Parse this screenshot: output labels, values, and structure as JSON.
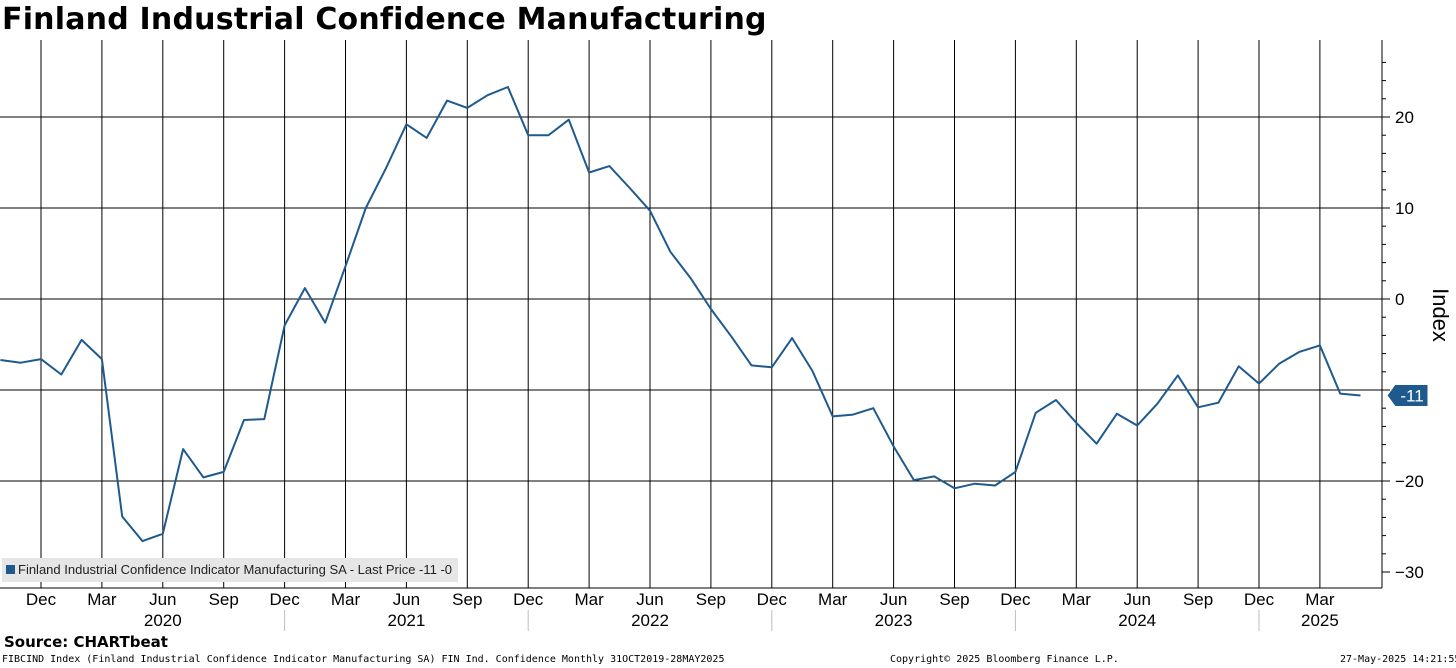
{
  "title": "Finland Industrial Confidence Manufacturing",
  "source": "Source: CHARTbeat",
  "footer": {
    "left": "FIBCIND Index (Finland Industrial Confidence Indicator Manufacturing SA) FIN Ind. Confidence  Monthly 31OCT2019-28MAY2025",
    "center": "Copyright© 2025 Bloomberg Finance L.P.",
    "right": "27-May-2025 14:21:55"
  },
  "legend": {
    "label": "Finland Industrial Confidence Indicator Manufacturing SA - Last Price -11  -0",
    "position": "bottom-left"
  },
  "colors": {
    "line": "#1f5a8e",
    "grid": "#000000",
    "last_badge": "#1f5a8e"
  },
  "chart_data": {
    "type": "line",
    "ylabel": "Index",
    "ylim": [
      -30,
      27
    ],
    "yticks": [
      -30,
      -20,
      -10,
      0,
      10,
      20
    ],
    "y_axis_position": "right",
    "grid": true,
    "last_value_label": "-11",
    "last_value": -10.6,
    "x_start": "2019-11",
    "x_end": "2025-05",
    "x_tick_labels": [
      {
        "date": "2019-12",
        "label": "Dec"
      },
      {
        "date": "2020-03",
        "label": "Mar"
      },
      {
        "date": "2020-06",
        "label": "Jun"
      },
      {
        "date": "2020-09",
        "label": "Sep"
      },
      {
        "date": "2020-12",
        "label": "Dec"
      },
      {
        "date": "2021-03",
        "label": "Mar"
      },
      {
        "date": "2021-06",
        "label": "Jun"
      },
      {
        "date": "2021-09",
        "label": "Sep"
      },
      {
        "date": "2021-12",
        "label": "Dec"
      },
      {
        "date": "2022-03",
        "label": "Mar"
      },
      {
        "date": "2022-06",
        "label": "Jun"
      },
      {
        "date": "2022-09",
        "label": "Sep"
      },
      {
        "date": "2022-12",
        "label": "Dec"
      },
      {
        "date": "2023-03",
        "label": "Mar"
      },
      {
        "date": "2023-06",
        "label": "Jun"
      },
      {
        "date": "2023-09",
        "label": "Sep"
      },
      {
        "date": "2023-12",
        "label": "Dec"
      },
      {
        "date": "2024-03",
        "label": "Mar"
      },
      {
        "date": "2024-06",
        "label": "Jun"
      },
      {
        "date": "2024-09",
        "label": "Sep"
      },
      {
        "date": "2024-12",
        "label": "Dec"
      },
      {
        "date": "2025-03",
        "label": "Mar"
      }
    ],
    "year_labels": [
      {
        "date": "2020-06",
        "label": "2020"
      },
      {
        "date": "2021-06",
        "label": "2021"
      },
      {
        "date": "2022-06",
        "label": "2022"
      },
      {
        "date": "2023-06",
        "label": "2023"
      },
      {
        "date": "2024-06",
        "label": "2024"
      },
      {
        "date": "2025-03",
        "label": "2025"
      }
    ],
    "year_separators": [
      "2020-12",
      "2021-12",
      "2022-12",
      "2023-12",
      "2024-12"
    ],
    "series": [
      {
        "name": "Finland Industrial Confidence Indicator Manufacturing SA",
        "x": [
          "2019-10",
          "2019-11",
          "2019-12",
          "2020-01",
          "2020-02",
          "2020-03",
          "2020-04",
          "2020-05",
          "2020-06",
          "2020-07",
          "2020-08",
          "2020-09",
          "2020-10",
          "2020-11",
          "2020-12",
          "2021-01",
          "2021-02",
          "2021-03",
          "2021-04",
          "2021-05",
          "2021-06",
          "2021-07",
          "2021-08",
          "2021-09",
          "2021-10",
          "2021-11",
          "2021-12",
          "2022-01",
          "2022-02",
          "2022-03",
          "2022-04",
          "2022-05",
          "2022-06",
          "2022-07",
          "2022-08",
          "2022-09",
          "2022-10",
          "2022-11",
          "2022-12",
          "2023-01",
          "2023-02",
          "2023-03",
          "2023-04",
          "2023-05",
          "2023-06",
          "2023-07",
          "2023-08",
          "2023-09",
          "2023-10",
          "2023-11",
          "2023-12",
          "2024-01",
          "2024-02",
          "2024-03",
          "2024-04",
          "2024-05",
          "2024-06",
          "2024-07",
          "2024-08",
          "2024-09",
          "2024-10",
          "2024-11",
          "2024-12",
          "2025-01",
          "2025-02",
          "2025-03",
          "2025-04",
          "2025-05"
        ],
        "values": [
          -6.7,
          -7.0,
          -6.6,
          -8.3,
          -4.5,
          -6.6,
          -23.9,
          -26.6,
          -25.8,
          -16.5,
          -19.6,
          -19.0,
          -13.3,
          -13.2,
          -2.9,
          1.2,
          -2.6,
          3.6,
          10.0,
          14.4,
          19.2,
          17.7,
          21.8,
          21.0,
          22.4,
          23.3,
          18.0,
          18.0,
          19.7,
          13.9,
          14.6,
          12.2,
          9.7,
          5.2,
          2.3,
          -1.1,
          -4.1,
          -7.3,
          -7.5,
          -4.3,
          -7.9,
          -12.9,
          -12.7,
          -12.0,
          -16.2,
          -19.9,
          -19.5,
          -20.8,
          -20.3,
          -20.5,
          -19.0,
          -12.5,
          -11.1,
          -13.6,
          -15.9,
          -12.6,
          -13.9,
          -11.5,
          -8.4,
          -11.9,
          -11.4,
          -7.4,
          -9.3,
          -7.1,
          -5.8,
          -5.1,
          -10.4,
          -10.6
        ]
      }
    ]
  }
}
